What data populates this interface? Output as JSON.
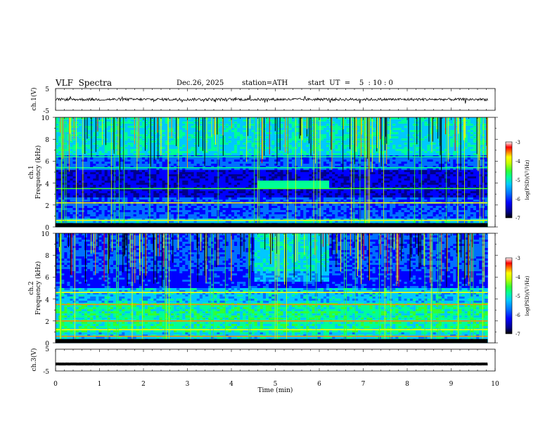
{
  "header": {
    "title": "VLF  Spectra",
    "date": "Dec.26, 2025",
    "station": "station=ATH",
    "start_ut": "start  UT  =    5  : 10 : 0"
  },
  "chart_data": [
    {
      "type": "line",
      "panel": "ch1-waveform",
      "ylabel": "ch.1(V)",
      "ylim": [
        -5,
        5
      ],
      "yticks": [
        "5",
        "-5"
      ],
      "xlim": [
        0,
        10
      ],
      "trace_level": 0,
      "trace_color": "#000000"
    },
    {
      "type": "heatmap",
      "panel": "ch1-spectrogram",
      "ylabel": "ch.1\nFrequency  (kHz)",
      "ylabel_line1": "ch.1",
      "ylabel_line2": "Frequency  (kHz)",
      "ylim": [
        0,
        10
      ],
      "yticks": [
        "0",
        "2",
        "4",
        "6",
        "8",
        "10"
      ],
      "xlim": [
        0,
        10
      ],
      "colorbar": {
        "label": "log(PSD)(V²/Hz)",
        "range": [
          -7,
          -3
        ],
        "ticks": [
          "-3",
          "-4",
          "-5",
          "-6",
          "-7"
        ]
      }
    },
    {
      "type": "heatmap",
      "panel": "ch2-spectrogram",
      "ylabel_line1": "ch.2",
      "ylabel_line2": "Frequency  (kHz)",
      "ylim": [
        0,
        10
      ],
      "yticks": [
        "0",
        "2",
        "4",
        "6",
        "8",
        "10"
      ],
      "xlim": [
        0,
        10
      ],
      "colorbar": {
        "label": "log(PSD)(V²/Hz)",
        "range": [
          -7,
          -3
        ],
        "ticks": [
          "-3",
          "-4",
          "-5",
          "-6",
          "-7"
        ]
      }
    },
    {
      "type": "line",
      "panel": "ch3-waveform",
      "ylabel": "ch.3(V)",
      "ylim": [
        -5,
        5
      ],
      "yticks": [
        "5",
        "-5"
      ],
      "xlim": [
        0,
        10
      ],
      "trace_level": -1.8,
      "trace_color": "#000000"
    }
  ],
  "xaxis": {
    "label": "Time  (min)",
    "ticks": [
      "0",
      "1",
      "2",
      "3",
      "4",
      "5",
      "6",
      "7",
      "8",
      "9",
      "10"
    ],
    "data_end": 9.83
  },
  "colors": {
    "colormap": [
      "#000000",
      "#00008b",
      "#0000ff",
      "#0070ff",
      "#00c8ff",
      "#00ff96",
      "#32ff32",
      "#c8ff00",
      "#ffff00",
      "#ff8c00",
      "#ff0000",
      "#ffffff"
    ]
  }
}
